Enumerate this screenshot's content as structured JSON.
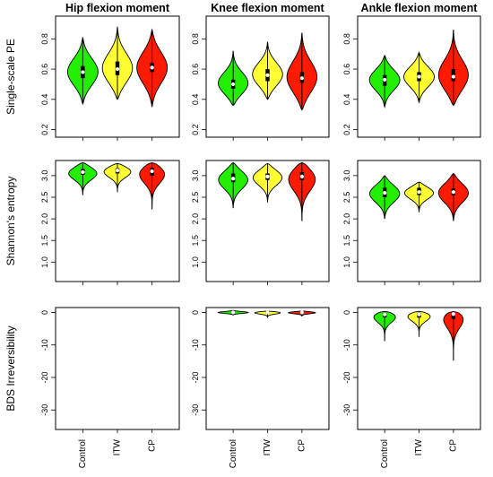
{
  "chart_data": {
    "type": "violin",
    "columns": [
      "Hip flexion moment",
      "Knee flexion moment",
      "Ankle flexion moment"
    ],
    "rows": [
      "Single-scale PE",
      "Shannon's entropy",
      "BDS Irreversibility"
    ],
    "categories": [
      "Control",
      "ITW",
      "CP"
    ],
    "colors": {
      "Control": "#22ee00",
      "ITW": "#ffff33",
      "CP": "#ff1a00"
    },
    "row_axes": [
      {
        "ylim": [
          0.15,
          0.95
        ],
        "ticks": [
          "0.2",
          "0.4",
          "0.6",
          "0.8"
        ],
        "tick_values": [
          0.2,
          0.4,
          0.6,
          0.8
        ]
      },
      {
        "ylim": [
          0.55,
          3.35
        ],
        "ticks": [
          "1.0",
          "1.5",
          "2.0",
          "2.5",
          "3.0"
        ],
        "tick_values": [
          1.0,
          1.5,
          2.0,
          2.5,
          3.0
        ]
      },
      {
        "ylim": [
          -36,
          1.5
        ],
        "ticks": [
          "-30",
          "-20",
          "-10",
          "0"
        ],
        "tick_values": [
          -30,
          -20,
          -10,
          0
        ]
      }
    ],
    "panels": [
      {
        "row": 0,
        "col": 0,
        "violins": [
          {
            "group": "Control",
            "min": 0.37,
            "q1": 0.54,
            "median": 0.58,
            "q3": 0.62,
            "max": 0.81
          },
          {
            "group": "ITW",
            "min": 0.4,
            "q1": 0.56,
            "median": 0.6,
            "q3": 0.65,
            "max": 0.88
          },
          {
            "group": "CP",
            "min": 0.35,
            "q1": 0.58,
            "median": 0.61,
            "q3": 0.64,
            "max": 0.86
          }
        ]
      },
      {
        "row": 0,
        "col": 1,
        "violins": [
          {
            "group": "Control",
            "min": 0.36,
            "q1": 0.47,
            "median": 0.5,
            "q3": 0.53,
            "max": 0.72
          },
          {
            "group": "ITW",
            "min": 0.4,
            "q1": 0.52,
            "median": 0.56,
            "q3": 0.6,
            "max": 0.78
          },
          {
            "group": "CP",
            "min": 0.33,
            "q1": 0.51,
            "median": 0.54,
            "q3": 0.58,
            "max": 0.84
          }
        ]
      },
      {
        "row": 0,
        "col": 2,
        "violins": [
          {
            "group": "Control",
            "min": 0.35,
            "q1": 0.49,
            "median": 0.53,
            "q3": 0.56,
            "max": 0.69
          },
          {
            "group": "ITW",
            "min": 0.38,
            "q1": 0.52,
            "median": 0.55,
            "q3": 0.58,
            "max": 0.71
          },
          {
            "group": "CP",
            "min": 0.36,
            "q1": 0.52,
            "median": 0.55,
            "q3": 0.6,
            "max": 0.86
          }
        ]
      },
      {
        "row": 1,
        "col": 0,
        "violins": [
          {
            "group": "Control",
            "min": 2.55,
            "q1": 3.02,
            "median": 3.08,
            "q3": 3.15,
            "max": 3.3
          },
          {
            "group": "ITW",
            "min": 2.62,
            "q1": 3.05,
            "median": 3.12,
            "q3": 3.17,
            "max": 3.28
          },
          {
            "group": "CP",
            "min": 2.22,
            "q1": 3.0,
            "median": 3.1,
            "q3": 3.18,
            "max": 3.3
          }
        ]
      },
      {
        "row": 1,
        "col": 1,
        "violins": [
          {
            "group": "Control",
            "min": 2.25,
            "q1": 2.85,
            "median": 2.93,
            "q3": 3.05,
            "max": 3.3
          },
          {
            "group": "ITW",
            "min": 2.38,
            "q1": 2.9,
            "median": 2.98,
            "q3": 3.05,
            "max": 3.28
          },
          {
            "group": "CP",
            "min": 1.95,
            "q1": 2.9,
            "median": 2.98,
            "q3": 3.08,
            "max": 3.3
          }
        ]
      },
      {
        "row": 1,
        "col": 2,
        "violins": [
          {
            "group": "Control",
            "min": 2.0,
            "q1": 2.5,
            "median": 2.6,
            "q3": 2.72,
            "max": 3.0
          },
          {
            "group": "ITW",
            "min": 2.15,
            "q1": 2.55,
            "median": 2.62,
            "q3": 2.72,
            "max": 2.85
          },
          {
            "group": "CP",
            "min": 1.95,
            "q1": 2.55,
            "median": 2.62,
            "q3": 2.7,
            "max": 3.05
          }
        ]
      },
      {
        "row": 2,
        "col": 0,
        "violins": []
      },
      {
        "row": 2,
        "col": 1,
        "violins": [
          {
            "group": "Control",
            "min": -0.8,
            "q1": -0.2,
            "median": 0.0,
            "q3": 0.1,
            "max": 0.6
          },
          {
            "group": "ITW",
            "min": -1.6,
            "q1": -0.3,
            "median": 0.0,
            "q3": 0.1,
            "max": 0.4
          },
          {
            "group": "CP",
            "min": -1.2,
            "q1": -0.2,
            "median": 0.0,
            "q3": 0.1,
            "max": 0.4
          }
        ]
      },
      {
        "row": 2,
        "col": 2,
        "violins": [
          {
            "group": "Control",
            "min": -8.8,
            "q1": -1.5,
            "median": -0.6,
            "q3": -0.1,
            "max": 0.3
          },
          {
            "group": "ITW",
            "min": -7.5,
            "q1": -1.6,
            "median": -0.6,
            "q3": -0.1,
            "max": 0.3
          },
          {
            "group": "CP",
            "min": -14.8,
            "q1": -2.0,
            "median": -0.5,
            "q3": -0.1,
            "max": 0.3
          }
        ]
      }
    ]
  }
}
